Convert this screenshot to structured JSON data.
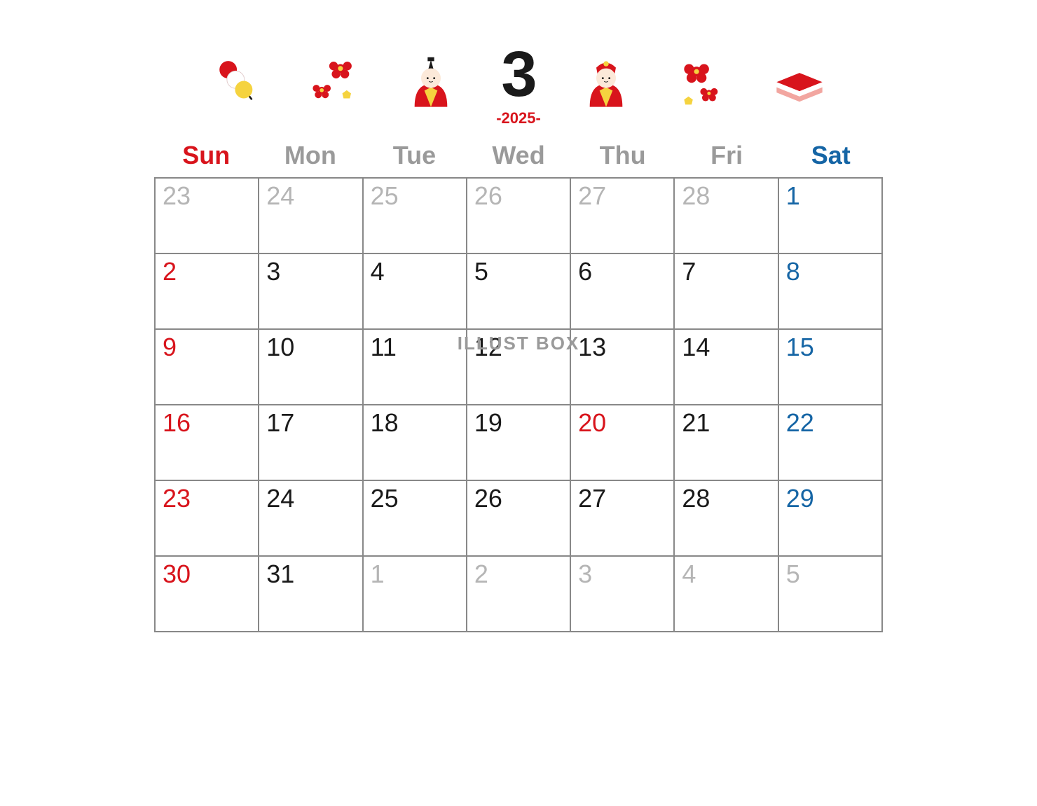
{
  "colors": {
    "sunday": "#d8141c",
    "saturday": "#1565a5",
    "weekday_header": "#9a9a9a",
    "outside_month": "#b5b5b5",
    "normal_day": "#1a1a1a",
    "month_num": "#1a1a1a",
    "year": "#d8141c",
    "border": "#888888",
    "icon_red": "#d8141c",
    "icon_yellow": "#f5d33f",
    "icon_pink": "#f2a6a0",
    "icon_white": "#ffffff"
  },
  "header": {
    "month": "3",
    "year": "-2025-"
  },
  "weekdays": [
    {
      "label": "Sun",
      "color_key": "sunday"
    },
    {
      "label": "Mon",
      "color_key": "weekday_header"
    },
    {
      "label": "Tue",
      "color_key": "weekday_header"
    },
    {
      "label": "Wed",
      "color_key": "weekday_header"
    },
    {
      "label": "Thu",
      "color_key": "weekday_header"
    },
    {
      "label": "Fri",
      "color_key": "weekday_header"
    },
    {
      "label": "Sat",
      "color_key": "saturday"
    }
  ],
  "weeks": [
    [
      {
        "n": "23",
        "c": "outside_month"
      },
      {
        "n": "24",
        "c": "outside_month"
      },
      {
        "n": "25",
        "c": "outside_month"
      },
      {
        "n": "26",
        "c": "outside_month"
      },
      {
        "n": "27",
        "c": "outside_month"
      },
      {
        "n": "28",
        "c": "outside_month"
      },
      {
        "n": "1",
        "c": "saturday"
      }
    ],
    [
      {
        "n": "2",
        "c": "sunday"
      },
      {
        "n": "3",
        "c": "normal_day"
      },
      {
        "n": "4",
        "c": "normal_day"
      },
      {
        "n": "5",
        "c": "normal_day"
      },
      {
        "n": "6",
        "c": "normal_day"
      },
      {
        "n": "7",
        "c": "normal_day"
      },
      {
        "n": "8",
        "c": "saturday"
      }
    ],
    [
      {
        "n": "9",
        "c": "sunday"
      },
      {
        "n": "10",
        "c": "normal_day"
      },
      {
        "n": "11",
        "c": "normal_day"
      },
      {
        "n": "12",
        "c": "normal_day"
      },
      {
        "n": "13",
        "c": "normal_day"
      },
      {
        "n": "14",
        "c": "normal_day"
      },
      {
        "n": "15",
        "c": "saturday"
      }
    ],
    [
      {
        "n": "16",
        "c": "sunday"
      },
      {
        "n": "17",
        "c": "normal_day"
      },
      {
        "n": "18",
        "c": "normal_day"
      },
      {
        "n": "19",
        "c": "normal_day"
      },
      {
        "n": "20",
        "c": "sunday"
      },
      {
        "n": "21",
        "c": "normal_day"
      },
      {
        "n": "22",
        "c": "saturday"
      }
    ],
    [
      {
        "n": "23",
        "c": "sunday"
      },
      {
        "n": "24",
        "c": "normal_day"
      },
      {
        "n": "25",
        "c": "normal_day"
      },
      {
        "n": "26",
        "c": "normal_day"
      },
      {
        "n": "27",
        "c": "normal_day"
      },
      {
        "n": "28",
        "c": "normal_day"
      },
      {
        "n": "29",
        "c": "saturday"
      }
    ],
    [
      {
        "n": "30",
        "c": "sunday"
      },
      {
        "n": "31",
        "c": "normal_day"
      },
      {
        "n": "1",
        "c": "outside_month"
      },
      {
        "n": "2",
        "c": "outside_month"
      },
      {
        "n": "3",
        "c": "outside_month"
      },
      {
        "n": "4",
        "c": "outside_month"
      },
      {
        "n": "5",
        "c": "outside_month"
      }
    ]
  ],
  "watermark": "ILLUST BOX",
  "icons": [
    "dango",
    "flowers-left",
    "hina-male",
    "month",
    "hina-female",
    "flowers-right",
    "hishimochi"
  ]
}
